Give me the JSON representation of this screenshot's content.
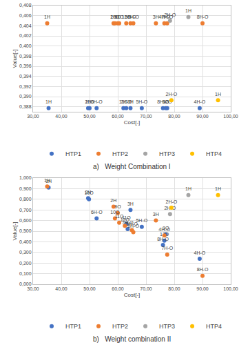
{
  "chart_data": [
    {
      "type": "scatter",
      "title": "a)   Weight Combination I",
      "x_label": "Cost[-]",
      "y_label": "Value[-]",
      "xlim": [
        30,
        100
      ],
      "xticks": [
        {
          "value": 30,
          "label": "30,00"
        },
        {
          "value": 40,
          "label": "40,00"
        },
        {
          "value": 50,
          "label": "50,00"
        },
        {
          "value": 60,
          "label": "60,00"
        },
        {
          "value": 70,
          "label": "70,00"
        },
        {
          "value": 80,
          "label": "80,00"
        },
        {
          "value": 90,
          "label": "90,00"
        },
        {
          "value": 100,
          "label": "100,00"
        }
      ],
      "ylim": [
        0.387,
        0.408
      ],
      "yticks": [
        {
          "value": 0.388,
          "label": "0,388"
        },
        {
          "value": 0.39,
          "label": "0,390"
        },
        {
          "value": 0.392,
          "label": "0,392"
        },
        {
          "value": 0.394,
          "label": "0,394"
        },
        {
          "value": 0.396,
          "label": "0,396"
        },
        {
          "value": 0.398,
          "label": "0,398"
        },
        {
          "value": 0.4,
          "label": "0,400"
        },
        {
          "value": 0.402,
          "label": "0,402"
        },
        {
          "value": 0.404,
          "label": "0,404"
        },
        {
          "value": 0.406,
          "label": "0,406"
        },
        {
          "value": 0.408,
          "label": "0,408"
        }
      ],
      "grid": true,
      "legend": "bottom",
      "marker": "circle",
      "series": [
        {
          "name": "HTP1",
          "color": "#4472c4",
          "x": [
            35.5,
            49.5,
            50,
            52.5,
            62,
            64.5,
            63,
            68.5,
            76,
            77.5,
            77,
            89
          ],
          "values": [
            0.3877,
            0.3877,
            0.3877,
            0.3877,
            0.3877,
            0.3877,
            0.3877,
            0.3877,
            0.3877,
            0.3877,
            0.3877,
            0.3877
          ],
          "labels": [
            "1H",
            "2H",
            "10O",
            "6H-O",
            "11O",
            "3H",
            "7H-O",
            "5H-O",
            "8H-O",
            "12O",
            "9O",
            "4H-O"
          ]
        },
        {
          "name": "HTP2",
          "color": "#ed7d31",
          "x": [
            35,
            58.5,
            59,
            60,
            60.5,
            63,
            64.5,
            65.5,
            73.5,
            76.5,
            77.5,
            90
          ],
          "values": [
            0.4045,
            0.4045,
            0.4045,
            0.4045,
            0.4045,
            0.4045,
            0.4045,
            0.4045,
            0.4045,
            0.4045,
            0.4045,
            0.4045
          ],
          "labels": [
            "1H",
            "2H",
            "10O",
            "9O",
            "11O",
            "12O",
            "5H-O",
            "6H-O",
            "3H",
            "4H-O",
            "7H-O",
            "8H-O"
          ]
        },
        {
          "name": "HTP3",
          "color": "#a5a5a5",
          "x": [
            78.5,
            85
          ],
          "values": [
            0.405,
            0.4057
          ],
          "labels": [
            "2H-O",
            "1H"
          ]
        },
        {
          "name": "HTP4",
          "color": "#ffc000",
          "x": [
            79,
            95.5
          ],
          "values": [
            0.3893,
            0.3893
          ],
          "labels": [
            "2H-O",
            "1H"
          ]
        }
      ]
    },
    {
      "type": "scatter",
      "title": "b)   Weight combination II",
      "x_label": "Cost[-]",
      "y_label": "Value[-]",
      "xlim": [
        30,
        100
      ],
      "xticks": [
        {
          "value": 30,
          "label": "30,00"
        },
        {
          "value": 40,
          "label": "40,00"
        },
        {
          "value": 50,
          "label": "50,00"
        },
        {
          "value": 60,
          "label": "60,00"
        },
        {
          "value": 70,
          "label": "70,00"
        },
        {
          "value": 80,
          "label": "80,00"
        },
        {
          "value": 90,
          "label": "90,00"
        },
        {
          "value": 100,
          "label": "100,00"
        }
      ],
      "ylim": [
        0,
        1
      ],
      "yticks": [
        {
          "value": 0,
          "label": "0,000"
        },
        {
          "value": 0.1,
          "label": "0,100"
        },
        {
          "value": 0.2,
          "label": "0,200"
        },
        {
          "value": 0.3,
          "label": "0,300"
        },
        {
          "value": 0.4,
          "label": "0,400"
        },
        {
          "value": 0.5,
          "label": "0,500"
        },
        {
          "value": 0.6,
          "label": "0,600"
        },
        {
          "value": 0.7,
          "label": "0,700"
        },
        {
          "value": 0.8,
          "label": "0,800"
        },
        {
          "value": 0.9,
          "label": "0,900"
        },
        {
          "value": 1,
          "label": "1,000"
        }
      ],
      "grid": true,
      "legend": "bottom",
      "marker": "circle",
      "series": [
        {
          "name": "HTP1",
          "color": "#4472c4",
          "x": [
            35.5,
            49.5,
            49.8,
            52.5,
            63,
            64.5,
            63.5,
            68.5,
            76,
            76.5,
            77,
            89
          ],
          "values": [
            0.91,
            0.81,
            0.8,
            0.62,
            0.57,
            0.7,
            0.52,
            0.54,
            0.37,
            0.41,
            0.47,
            0.24
          ],
          "labels": [
            "1H",
            "2H",
            "10O",
            "6H-O",
            "11O",
            "3H",
            "7H-O",
            "5H-O",
            "8H-O",
            "12O",
            "9O",
            "4H-O"
          ]
        },
        {
          "name": "HTP2",
          "color": "#ed7d31",
          "x": [
            35,
            58.5,
            59,
            60,
            60.5,
            62.5,
            65,
            65.5,
            73.5,
            76.5,
            77.5,
            90
          ],
          "values": [
            0.92,
            0.73,
            0.62,
            0.67,
            0.58,
            0.55,
            0.51,
            0.49,
            0.6,
            0.46,
            0.28,
            0.08
          ],
          "labels": [
            "1H",
            "2H",
            "10O",
            "9O",
            "11O",
            "12O",
            "5H-O",
            "6H-O",
            "3H",
            "4H-O",
            "7H-O",
            "8H-O"
          ]
        },
        {
          "name": "HTP3",
          "color": "#a5a5a5",
          "x": [
            78.5,
            85
          ],
          "values": [
            0.66,
            0.84
          ],
          "labels": [
            "2H-O",
            "1H"
          ]
        },
        {
          "name": "HTP4",
          "color": "#ffc000",
          "x": [
            79,
            95.5
          ],
          "values": [
            0.72,
            0.84
          ],
          "labels": [
            "2H-O",
            "1H"
          ]
        }
      ]
    }
  ]
}
